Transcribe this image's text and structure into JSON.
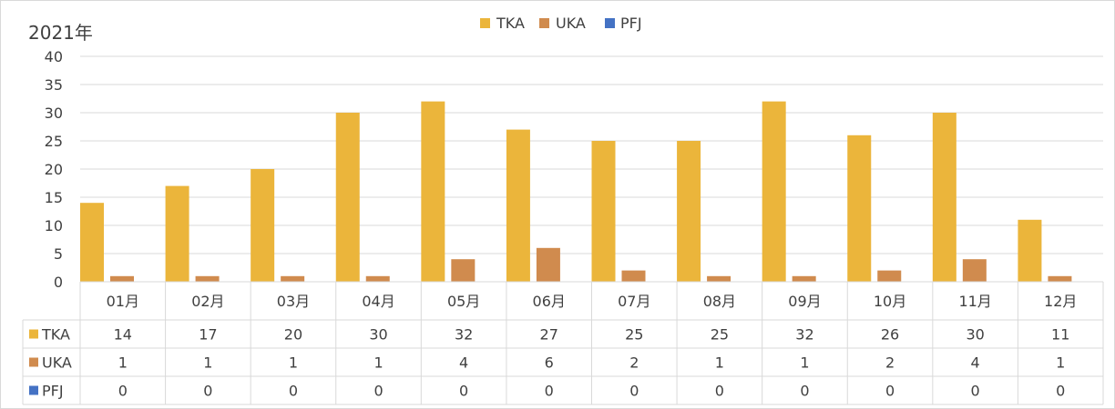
{
  "chart_data": {
    "type": "bar",
    "title": "2021年",
    "xlabel": "",
    "ylabel": "",
    "ylim": [
      0,
      40
    ],
    "yticks": [
      0,
      5,
      10,
      15,
      20,
      25,
      30,
      35,
      40
    ],
    "categories": [
      "01月",
      "02月",
      "03月",
      "04月",
      "05月",
      "06月",
      "07月",
      "08月",
      "09月",
      "10月",
      "11月",
      "12月"
    ],
    "series": [
      {
        "name": "TKA",
        "color": "#EBB53B",
        "values": [
          14,
          17,
          20,
          30,
          32,
          27,
          25,
          25,
          32,
          26,
          30,
          11
        ]
      },
      {
        "name": "UKA",
        "color": "#D08B4E",
        "values": [
          1,
          1,
          1,
          1,
          4,
          6,
          2,
          1,
          1,
          2,
          4,
          1
        ]
      },
      {
        "name": "PFJ",
        "color": "#4472C4",
        "values": [
          0,
          0,
          0,
          0,
          0,
          0,
          0,
          0,
          0,
          0,
          0,
          0
        ]
      }
    ],
    "legend": "top-center",
    "grid": true,
    "data_table": true
  }
}
